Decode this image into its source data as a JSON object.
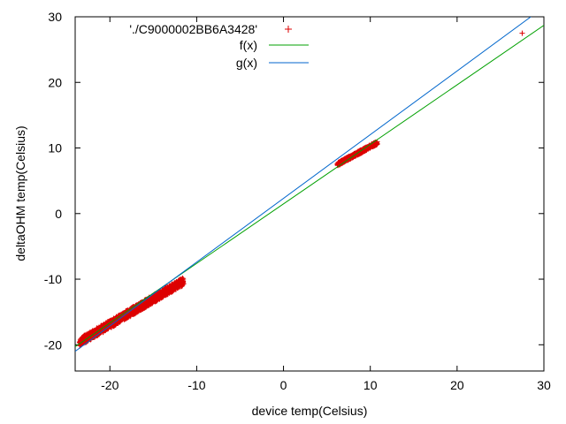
{
  "chart_data": {
    "type": "scatter",
    "xlabel": "device temp(Celsius)",
    "ylabel": "deltaOHM temp(Celsius)",
    "xlim": [
      -24,
      30
    ],
    "ylim": [
      -24,
      30
    ],
    "xticks": [
      -20,
      -10,
      0,
      10,
      20,
      30
    ],
    "yticks": [
      -20,
      -10,
      0,
      10,
      20,
      30
    ],
    "grid": false,
    "legend_position": "top-left",
    "series": [
      {
        "name": "'./C9000002BB6A3428'",
        "kind": "points",
        "color": "#dd0000",
        "marker": "+",
        "clusters": [
          {
            "x_range": [
              -23.5,
              -11.5
            ],
            "y_at_x_min": -19.6,
            "y_at_x_max": -10.3,
            "spread": 0.6
          },
          {
            "x_range": [
              6.2,
              10.8
            ],
            "y_at_x_min": 7.5,
            "y_at_x_max": 10.8,
            "spread": 0.25
          }
        ],
        "points": [
          {
            "x": 27.5,
            "y": 27.5
          }
        ]
      },
      {
        "name": "f(x)",
        "kind": "line",
        "color": "#00a000",
        "x": [
          -24,
          30
        ],
        "y": [
          -20.3,
          28.7
        ]
      },
      {
        "name": "g(x)",
        "kind": "line",
        "color": "#0066cc",
        "x": [
          -24,
          28.5
        ],
        "y": [
          -21.0,
          30.0
        ]
      }
    ]
  }
}
